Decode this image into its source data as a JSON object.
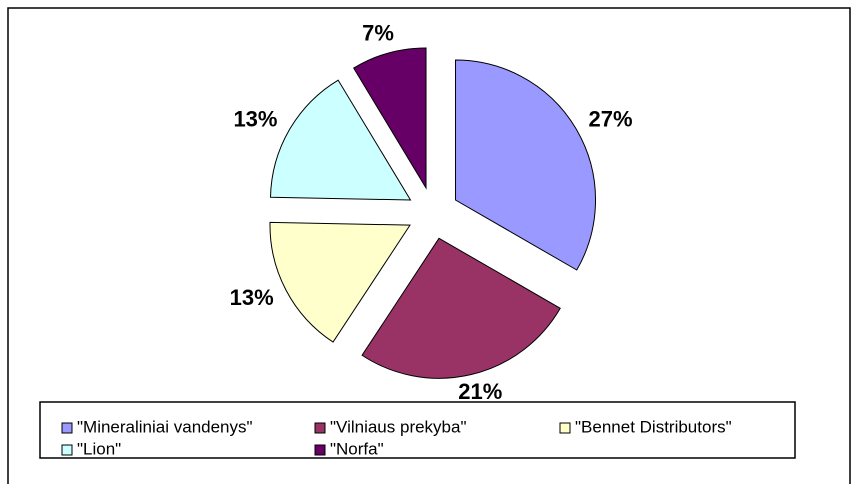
{
  "chart_data": {
    "type": "pie",
    "categories": [
      "\"Mineraliniai vandenys\"",
      "\"Vilniaus prekyba\"",
      "\"Bennet Distributors\"",
      "\"Lion\"",
      "\"Norfa\""
    ],
    "values": [
      27,
      21,
      13,
      13,
      7
    ],
    "value_labels": [
      "27%",
      "21%",
      "13%",
      "13%",
      "7%"
    ],
    "colors": [
      "#9999ff",
      "#993366",
      "#ffffcc",
      "#ccffff",
      "#660066"
    ],
    "legend": "bottom"
  }
}
